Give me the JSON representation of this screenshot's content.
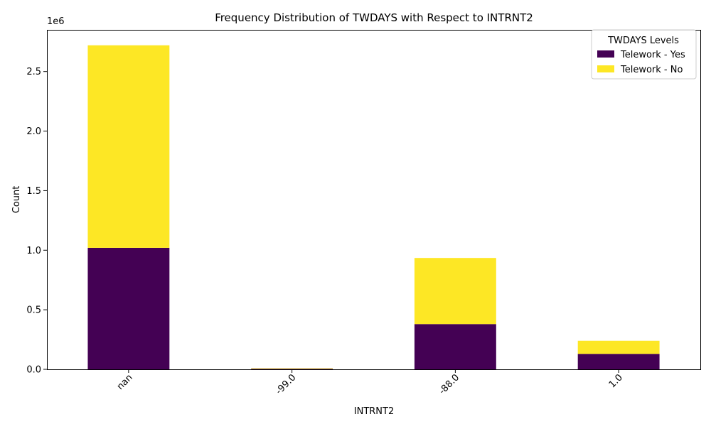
{
  "chart_data": {
    "type": "bar",
    "stacked": true,
    "title": "Frequency Distribution of TWDAYS with Respect to INTRNT2",
    "xlabel": "INTRNT2",
    "ylabel": "Count",
    "y_offset_label": "1e6",
    "categories": [
      "nan",
      "-99.0",
      "-88.0",
      "1.0"
    ],
    "series": [
      {
        "name": "Telework - Yes",
        "color": "#440154",
        "values": [
          1020000,
          5000,
          380000,
          130000
        ]
      },
      {
        "name": "Telework - No",
        "color": "#fde725",
        "values": [
          1700000,
          4000,
          555000,
          110000
        ]
      }
    ],
    "ylim": [
      0,
      2850000
    ],
    "yticks": [
      0,
      500000,
      1000000,
      1500000,
      2000000,
      2500000
    ],
    "ytick_labels": [
      "0.0",
      "0.5",
      "1.0",
      "1.5",
      "2.0",
      "2.5"
    ],
    "legend": {
      "title": "TWDAYS Levels",
      "position": "top-right"
    },
    "grid": false
  }
}
